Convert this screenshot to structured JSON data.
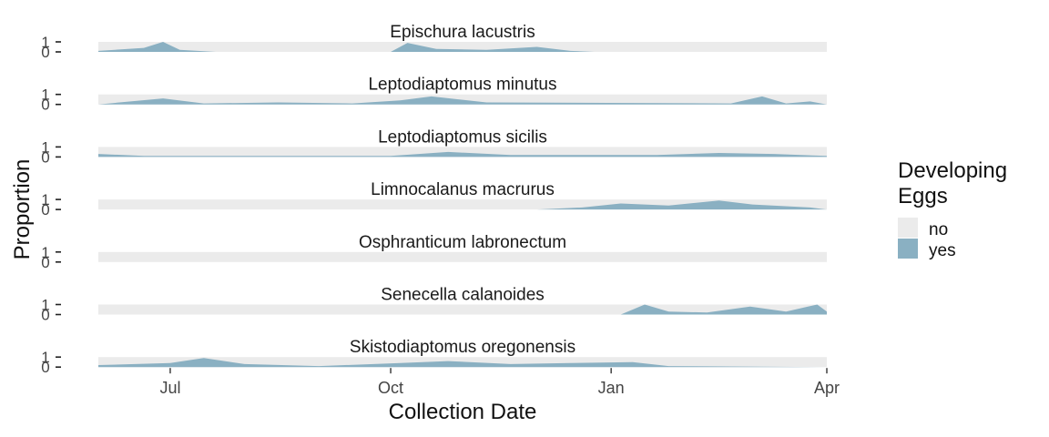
{
  "chart_data": {
    "type": "area",
    "xlabel": "Collection Date",
    "ylabel": "Proportion",
    "x_domain": [
      "2024-06-01",
      "2025-04-01"
    ],
    "x_ticks": [
      {
        "date": "2024-07-01",
        "label": "Jul"
      },
      {
        "date": "2024-10-01",
        "label": "Oct"
      },
      {
        "date": "2025-01-01",
        "label": "Jan"
      },
      {
        "date": "2025-04-01",
        "label": "Apr"
      }
    ],
    "y_tick_labels": [
      "0",
      "1"
    ],
    "ylim": [
      0,
      1
    ],
    "stacked_categories": [
      "no",
      "yes"
    ],
    "legend": {
      "title_lines": [
        "Developing",
        "Eggs"
      ],
      "position": "right",
      "entries": [
        {
          "label": "no",
          "color": "#ebebeb"
        },
        {
          "label": "yes",
          "color": "#8ab0c2"
        }
      ]
    },
    "panels": [
      {
        "title": "Epischura lacustris",
        "yes": [
          {
            "x": "2024-06-01",
            "y": 0.1
          },
          {
            "x": "2024-06-20",
            "y": 0.4
          },
          {
            "x": "2024-06-28",
            "y": 1.0
          },
          {
            "x": "2024-07-05",
            "y": 0.2
          },
          {
            "x": "2024-07-20",
            "y": 0.0
          },
          {
            "x": "2024-10-01",
            "y": 0.0
          },
          {
            "x": "2024-10-08",
            "y": 0.9
          },
          {
            "x": "2024-10-20",
            "y": 0.3
          },
          {
            "x": "2024-11-10",
            "y": 0.2
          },
          {
            "x": "2024-12-01",
            "y": 0.5
          },
          {
            "x": "2024-12-15",
            "y": 0.1
          },
          {
            "x": "2024-12-25",
            "y": 0.0
          },
          {
            "x": "2025-04-01",
            "y": 0.0
          }
        ]
      },
      {
        "title": "Leptodiaptomus minutus",
        "yes": [
          {
            "x": "2024-06-01",
            "y": 0.0
          },
          {
            "x": "2024-06-28",
            "y": 0.6
          },
          {
            "x": "2024-07-15",
            "y": 0.1
          },
          {
            "x": "2024-08-15",
            "y": 0.2
          },
          {
            "x": "2024-09-15",
            "y": 0.1
          },
          {
            "x": "2024-10-05",
            "y": 0.4
          },
          {
            "x": "2024-10-18",
            "y": 0.8
          },
          {
            "x": "2024-11-10",
            "y": 0.2
          },
          {
            "x": "2025-02-20",
            "y": 0.1
          },
          {
            "x": "2025-03-05",
            "y": 0.8
          },
          {
            "x": "2025-03-15",
            "y": 0.1
          },
          {
            "x": "2025-03-25",
            "y": 0.3
          },
          {
            "x": "2025-04-01",
            "y": 0.0
          }
        ]
      },
      {
        "title": "Leptodiaptomus sicilis",
        "yes": [
          {
            "x": "2024-06-01",
            "y": 0.3
          },
          {
            "x": "2024-06-20",
            "y": 0.1
          },
          {
            "x": "2024-10-01",
            "y": 0.1
          },
          {
            "x": "2024-10-25",
            "y": 0.5
          },
          {
            "x": "2024-11-20",
            "y": 0.2
          },
          {
            "x": "2025-01-20",
            "y": 0.2
          },
          {
            "x": "2025-02-15",
            "y": 0.4
          },
          {
            "x": "2025-03-10",
            "y": 0.3
          },
          {
            "x": "2025-04-01",
            "y": 0.1
          }
        ]
      },
      {
        "title": "Limnocalanus macrurus",
        "yes": [
          {
            "x": "2024-06-01",
            "y": 0.0
          },
          {
            "x": "2024-12-01",
            "y": 0.0
          },
          {
            "x": "2024-12-20",
            "y": 0.2
          },
          {
            "x": "2025-01-05",
            "y": 0.6
          },
          {
            "x": "2025-01-25",
            "y": 0.4
          },
          {
            "x": "2025-02-15",
            "y": 0.9
          },
          {
            "x": "2025-03-01",
            "y": 0.5
          },
          {
            "x": "2025-03-25",
            "y": 0.2
          },
          {
            "x": "2025-04-01",
            "y": 0.0
          }
        ]
      },
      {
        "title": "Osphranticum labronectum",
        "yes": [
          {
            "x": "2024-06-01",
            "y": 0.0
          },
          {
            "x": "2025-04-01",
            "y": 0.0
          }
        ]
      },
      {
        "title": "Senecella calanoides",
        "yes": [
          {
            "x": "2024-06-01",
            "y": 0.0
          },
          {
            "x": "2025-01-05",
            "y": 0.0
          },
          {
            "x": "2025-01-15",
            "y": 1.0
          },
          {
            "x": "2025-01-25",
            "y": 0.3
          },
          {
            "x": "2025-02-10",
            "y": 0.2
          },
          {
            "x": "2025-02-28",
            "y": 0.8
          },
          {
            "x": "2025-03-15",
            "y": 0.3
          },
          {
            "x": "2025-03-28",
            "y": 1.0
          },
          {
            "x": "2025-04-01",
            "y": 0.3
          }
        ]
      },
      {
        "title": "Skistodiaptomus oregonensis",
        "yes": [
          {
            "x": "2024-06-01",
            "y": 0.2
          },
          {
            "x": "2024-07-01",
            "y": 0.4
          },
          {
            "x": "2024-07-15",
            "y": 0.9
          },
          {
            "x": "2024-08-01",
            "y": 0.3
          },
          {
            "x": "2024-09-01",
            "y": 0.1
          },
          {
            "x": "2024-10-05",
            "y": 0.4
          },
          {
            "x": "2024-10-25",
            "y": 0.6
          },
          {
            "x": "2024-11-20",
            "y": 0.3
          },
          {
            "x": "2024-12-15",
            "y": 0.4
          },
          {
            "x": "2025-01-10",
            "y": 0.5
          },
          {
            "x": "2025-01-25",
            "y": 0.1
          },
          {
            "x": "2025-04-01",
            "y": 0.0
          }
        ]
      }
    ]
  }
}
